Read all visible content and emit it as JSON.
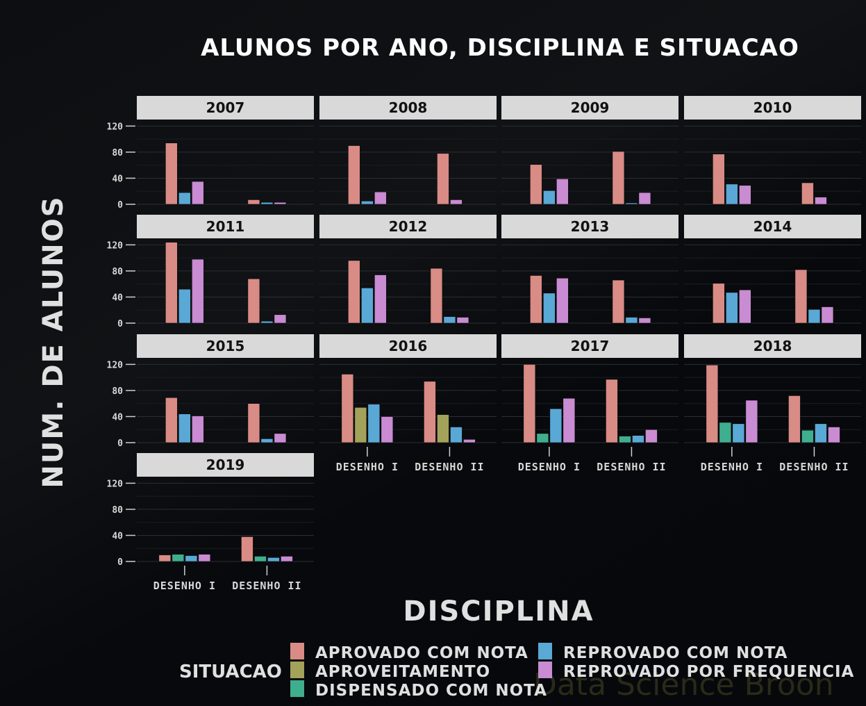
{
  "chart_data": {
    "type": "bar",
    "title": "ALUNOS POR ANO, DISCIPLINA E SITUACAO",
    "xlabel": "DISCIPLINA",
    "ylabel": "NUM. DE ALUNOS",
    "ylim": [
      0,
      130
    ],
    "yticks": [
      0,
      40,
      80,
      120
    ],
    "grid": true,
    "legend_title": "SITUACAO",
    "legend_position": "bottom",
    "categories": [
      "DESENHO I",
      "DESENHO II"
    ],
    "series": [
      {
        "name": "APROVADO COM NOTA",
        "color": "#d98b86"
      },
      {
        "name": "APROVEITAMENTO",
        "color": "#a3a25a"
      },
      {
        "name": "DISPENSADO COM NOTA",
        "color": "#3fae8f"
      },
      {
        "name": "REPROVADO COM NOTA",
        "color": "#5aa8d6"
      },
      {
        "name": "REPROVADO POR FREQUENCIA",
        "color": "#c98bd2"
      }
    ],
    "panels": [
      {
        "year": "2007",
        "groups": [
          {
            "category": "DESENHO I",
            "bars": [
              {
                "s": 0,
                "v": 94
              },
              {
                "s": 3,
                "v": 18
              },
              {
                "s": 4,
                "v": 35
              }
            ]
          },
          {
            "category": "DESENHO II",
            "bars": [
              {
                "s": 0,
                "v": 7
              },
              {
                "s": 3,
                "v": 3
              },
              {
                "s": 4,
                "v": 3
              }
            ]
          }
        ]
      },
      {
        "year": "2008",
        "groups": [
          {
            "category": "DESENHO I",
            "bars": [
              {
                "s": 0,
                "v": 90
              },
              {
                "s": 3,
                "v": 5
              },
              {
                "s": 4,
                "v": 19
              }
            ]
          },
          {
            "category": "DESENHO II",
            "bars": [
              {
                "s": 0,
                "v": 78
              },
              {
                "s": 4,
                "v": 7
              }
            ]
          }
        ]
      },
      {
        "year": "2009",
        "groups": [
          {
            "category": "DESENHO I",
            "bars": [
              {
                "s": 0,
                "v": 61
              },
              {
                "s": 3,
                "v": 21
              },
              {
                "s": 4,
                "v": 39
              }
            ]
          },
          {
            "category": "DESENHO II",
            "bars": [
              {
                "s": 0,
                "v": 81
              },
              {
                "s": 3,
                "v": 2
              },
              {
                "s": 4,
                "v": 18
              }
            ]
          }
        ]
      },
      {
        "year": "2010",
        "groups": [
          {
            "category": "DESENHO I",
            "bars": [
              {
                "s": 0,
                "v": 77
              },
              {
                "s": 3,
                "v": 31
              },
              {
                "s": 4,
                "v": 29
              }
            ]
          },
          {
            "category": "DESENHO II",
            "bars": [
              {
                "s": 0,
                "v": 33
              },
              {
                "s": 4,
                "v": 11
              }
            ]
          }
        ]
      },
      {
        "year": "2011",
        "groups": [
          {
            "category": "DESENHO I",
            "bars": [
              {
                "s": 0,
                "v": 124
              },
              {
                "s": 3,
                "v": 52
              },
              {
                "s": 4,
                "v": 98
              }
            ]
          },
          {
            "category": "DESENHO II",
            "bars": [
              {
                "s": 0,
                "v": 68
              },
              {
                "s": 3,
                "v": 3
              },
              {
                "s": 4,
                "v": 13
              }
            ]
          }
        ]
      },
      {
        "year": "2012",
        "groups": [
          {
            "category": "DESENHO I",
            "bars": [
              {
                "s": 0,
                "v": 96
              },
              {
                "s": 3,
                "v": 54
              },
              {
                "s": 4,
                "v": 74
              }
            ]
          },
          {
            "category": "DESENHO II",
            "bars": [
              {
                "s": 0,
                "v": 84
              },
              {
                "s": 3,
                "v": 10
              },
              {
                "s": 4,
                "v": 9
              }
            ]
          }
        ]
      },
      {
        "year": "2013",
        "groups": [
          {
            "category": "DESENHO I",
            "bars": [
              {
                "s": 0,
                "v": 73
              },
              {
                "s": 3,
                "v": 46
              },
              {
                "s": 4,
                "v": 69
              }
            ]
          },
          {
            "category": "DESENHO II",
            "bars": [
              {
                "s": 0,
                "v": 66
              },
              {
                "s": 3,
                "v": 9
              },
              {
                "s": 4,
                "v": 8
              }
            ]
          }
        ]
      },
      {
        "year": "2014",
        "groups": [
          {
            "category": "DESENHO I",
            "bars": [
              {
                "s": 0,
                "v": 61
              },
              {
                "s": 3,
                "v": 47
              },
              {
                "s": 4,
                "v": 51
              }
            ]
          },
          {
            "category": "DESENHO II",
            "bars": [
              {
                "s": 0,
                "v": 82
              },
              {
                "s": 3,
                "v": 21
              },
              {
                "s": 4,
                "v": 25
              }
            ]
          }
        ]
      },
      {
        "year": "2015",
        "groups": [
          {
            "category": "DESENHO I",
            "bars": [
              {
                "s": 0,
                "v": 69
              },
              {
                "s": 3,
                "v": 44
              },
              {
                "s": 4,
                "v": 41
              }
            ]
          },
          {
            "category": "DESENHO II",
            "bars": [
              {
                "s": 0,
                "v": 60
              },
              {
                "s": 3,
                "v": 6
              },
              {
                "s": 4,
                "v": 14
              }
            ]
          }
        ]
      },
      {
        "year": "2016",
        "groups": [
          {
            "category": "DESENHO I",
            "bars": [
              {
                "s": 0,
                "v": 105
              },
              {
                "s": 1,
                "v": 54
              },
              {
                "s": 3,
                "v": 59
              },
              {
                "s": 4,
                "v": 40
              }
            ]
          },
          {
            "category": "DESENHO II",
            "bars": [
              {
                "s": 0,
                "v": 94
              },
              {
                "s": 1,
                "v": 43
              },
              {
                "s": 3,
                "v": 24
              },
              {
                "s": 4,
                "v": 5
              }
            ]
          }
        ]
      },
      {
        "year": "2017",
        "groups": [
          {
            "category": "DESENHO I",
            "bars": [
              {
                "s": 0,
                "v": 120
              },
              {
                "s": 2,
                "v": 14
              },
              {
                "s": 3,
                "v": 52
              },
              {
                "s": 4,
                "v": 68
              }
            ]
          },
          {
            "category": "DESENHO II",
            "bars": [
              {
                "s": 0,
                "v": 97
              },
              {
                "s": 2,
                "v": 10
              },
              {
                "s": 3,
                "v": 11
              },
              {
                "s": 4,
                "v": 20
              }
            ]
          }
        ]
      },
      {
        "year": "2018",
        "groups": [
          {
            "category": "DESENHO I",
            "bars": [
              {
                "s": 0,
                "v": 119
              },
              {
                "s": 2,
                "v": 31
              },
              {
                "s": 3,
                "v": 29
              },
              {
                "s": 4,
                "v": 65
              }
            ]
          },
          {
            "category": "DESENHO II",
            "bars": [
              {
                "s": 0,
                "v": 72
              },
              {
                "s": 2,
                "v": 19
              },
              {
                "s": 3,
                "v": 29
              },
              {
                "s": 4,
                "v": 24
              }
            ]
          }
        ]
      },
      {
        "year": "2019",
        "groups": [
          {
            "category": "DESENHO I",
            "bars": [
              {
                "s": 0,
                "v": 10
              },
              {
                "s": 2,
                "v": 11
              },
              {
                "s": 3,
                "v": 9
              },
              {
                "s": 4,
                "v": 11
              }
            ]
          },
          {
            "category": "DESENHO II",
            "bars": [
              {
                "s": 0,
                "v": 38
              },
              {
                "s": 2,
                "v": 8
              },
              {
                "s": 3,
                "v": 6
              },
              {
                "s": 4,
                "v": 8
              }
            ]
          }
        ]
      }
    ]
  },
  "watermark": "Data Science Broon"
}
